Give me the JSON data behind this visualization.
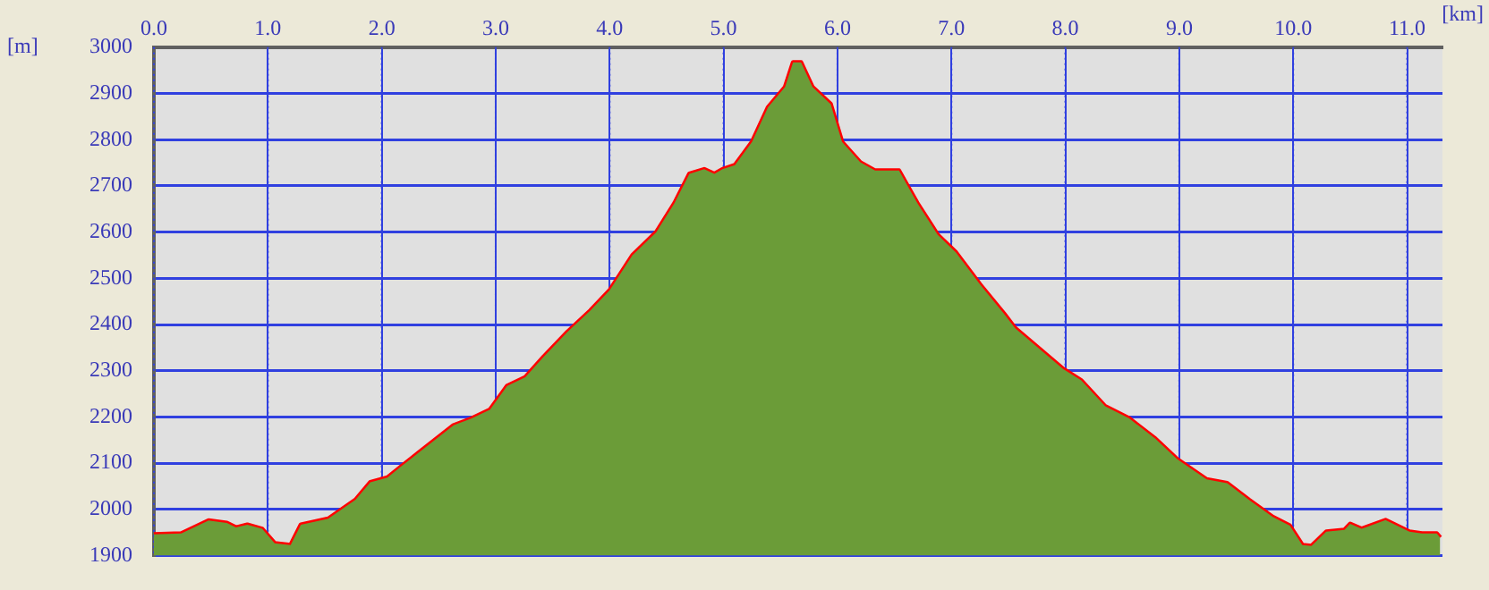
{
  "chart_data": {
    "type": "area",
    "xlabel": "[km]",
    "ylabel": "[m]",
    "x": [
      0,
      0.24,
      0.48,
      0.64,
      0.72,
      0.82,
      0.95,
      1.06,
      1.2,
      1.29,
      1.53,
      1.77,
      1.9,
      2.05,
      2.16,
      2.32,
      2.47,
      2.63,
      2.79,
      2.95,
      3.1,
      3.26,
      3.42,
      3.63,
      3.83,
      4.0,
      4.2,
      4.41,
      4.57,
      4.7,
      4.83,
      4.92,
      4.99,
      5.1,
      5.25,
      5.39,
      5.54,
      5.61,
      5.68,
      5.78,
      5.94,
      6.04,
      6.2,
      6.33,
      6.54,
      6.7,
      6.88,
      7.04,
      7.25,
      7.46,
      7.56,
      7.77,
      7.98,
      8.14,
      8.35,
      8.56,
      8.79,
      8.98,
      9.24,
      9.42,
      9.61,
      9.82,
      9.97,
      10.08,
      10.16,
      10.29,
      10.45,
      10.5,
      10.6,
      10.81,
      11.02,
      11.13,
      11.26,
      11.29
    ],
    "series": [
      {
        "color": "#6b9c38",
        "values": [
          1946,
          1948,
          1976,
          1971,
          1961,
          1967,
          1958,
          1927,
          1923,
          1967,
          1980,
          2021,
          2059,
          2069,
          2091,
          2122,
          2151,
          2182,
          2197,
          2216,
          2267,
          2286,
          2330,
          2384,
          2430,
          2474,
          2550,
          2600,
          2663,
          2726,
          2736,
          2726,
          2736,
          2745,
          2795,
          2870,
          2914,
          2967,
          2967,
          2914,
          2877,
          2795,
          2751,
          2733,
          2733,
          2663,
          2594,
          2556,
          2487,
          2424,
          2392,
          2348,
          2304,
          2279,
          2223,
          2197,
          2153,
          2109,
          2065,
          2057,
          2021,
          1984,
          1965,
          1923,
          1921,
          1952,
          1956,
          1969,
          1958,
          1977,
          1952,
          1948,
          1948,
          1939
        ]
      },
      {
        "type": "line",
        "color": "#ff0000",
        "values": [
          1946,
          1948,
          1976,
          1971,
          1961,
          1967,
          1958,
          1927,
          1923,
          1967,
          1980,
          2021,
          2059,
          2069,
          2091,
          2122,
          2151,
          2182,
          2197,
          2216,
          2267,
          2286,
          2330,
          2384,
          2430,
          2474,
          2550,
          2600,
          2663,
          2726,
          2736,
          2726,
          2736,
          2745,
          2795,
          2870,
          2914,
          2967,
          2967,
          2914,
          2877,
          2795,
          2751,
          2733,
          2733,
          2663,
          2594,
          2556,
          2487,
          2424,
          2392,
          2348,
          2304,
          2279,
          2223,
          2197,
          2153,
          2109,
          2065,
          2057,
          2021,
          1984,
          1965,
          1923,
          1921,
          1952,
          1956,
          1969,
          1958,
          1977,
          1952,
          1948,
          1948,
          1939
        ]
      }
    ],
    "xlim": [
      0,
      11.31
    ],
    "xticks": [
      {
        "value": 0,
        "label": "0.0"
      },
      {
        "value": 1,
        "label": "1.0"
      },
      {
        "value": 2,
        "label": "2.0"
      },
      {
        "value": 3,
        "label": "3.0"
      },
      {
        "value": 4,
        "label": "4.0"
      },
      {
        "value": 5,
        "label": "5.0"
      },
      {
        "value": 6,
        "label": "6.0"
      },
      {
        "value": 7,
        "label": "7.0"
      },
      {
        "value": 8,
        "label": "8.0"
      },
      {
        "value": 9,
        "label": "9.0"
      },
      {
        "value": 10,
        "label": "10.0"
      },
      {
        "value": 11,
        "label": "11.0"
      }
    ],
    "ylim": [
      1900,
      3000
    ],
    "yticks": [
      1900,
      2000,
      2100,
      2200,
      2300,
      2400,
      2500,
      2600,
      2700,
      2800,
      2900,
      3000
    ],
    "grid": true,
    "legend": false,
    "marker": "none",
    "line_style": "solid"
  }
}
